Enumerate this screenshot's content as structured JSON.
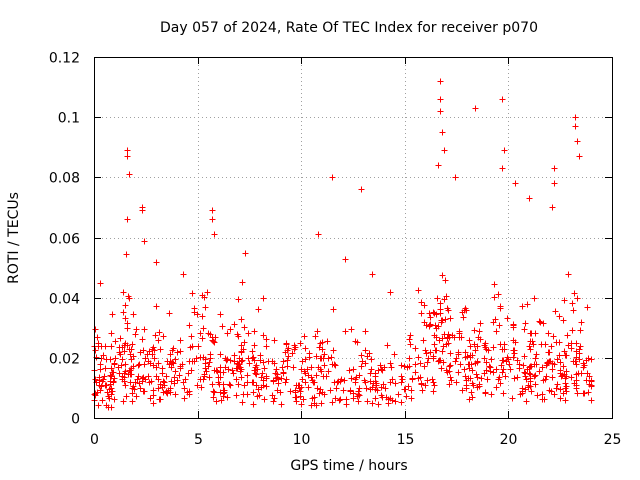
{
  "chart_data": {
    "type": "scatter",
    "title": "Day 057 of 2024, Rate Of TEC Index for receiver p070",
    "xlabel": "GPS time / hours",
    "ylabel": "ROTI / TECUs",
    "xlim": [
      0,
      25
    ],
    "ylim": [
      0,
      0.12
    ],
    "x_ticks": [
      "0",
      "5",
      "10",
      "15",
      "20",
      "25"
    ],
    "y_ticks": [
      "0",
      "0.02",
      "0.04",
      "0.06",
      "0.08",
      "0.1",
      "0.12"
    ],
    "x_tick_values": [
      0,
      5,
      10,
      15,
      20,
      25
    ],
    "y_tick_values": [
      0,
      0.02,
      0.04,
      0.06,
      0.08,
      0.1,
      0.12
    ],
    "grid": true,
    "marker": "plus",
    "series_color": "#ff0000",
    "series": [
      {
        "name": "ROTI",
        "note": "dense band of points between about 0.005 and 0.03 TECU/s across 0-24 h; representative points listed",
        "x": [
          0.1,
          0.3,
          0.5,
          0.8,
          1.0,
          1.2,
          1.5,
          1.6,
          1.7,
          2.0,
          2.2,
          2.4,
          2.6,
          2.9,
          3.1,
          3.4,
          3.7,
          4.0,
          4.4,
          4.6,
          5.0,
          5.3,
          5.6,
          5.8,
          6.0,
          6.3,
          6.7,
          7.0,
          7.2,
          7.4,
          7.7,
          8.0,
          8.3,
          8.6,
          8.9,
          9.2,
          9.6,
          9.9,
          10.2,
          10.6,
          10.9,
          11.2,
          11.5,
          11.9,
          12.3,
          12.6,
          12.9,
          13.3,
          13.6,
          14.0,
          14.4,
          14.8,
          15.2,
          15.5,
          15.9,
          16.2,
          16.5,
          16.7,
          16.9,
          17.1,
          17.4,
          17.7,
          17.9,
          18.2,
          18.5,
          18.8,
          19.1,
          19.4,
          19.7,
          19.9,
          20.2,
          20.5,
          20.8,
          21.0,
          21.3,
          21.6,
          21.9,
          22.2,
          22.5,
          22.8,
          23.0,
          23.2,
          23.4,
          23.6,
          23.9,
          1.6,
          1.6,
          1.7,
          1.6,
          2.3,
          2.3,
          2.4,
          4.3,
          5.7,
          5.7,
          5.8,
          7.3,
          11.5,
          12.9,
          10.8,
          16.7,
          16.7,
          16.7,
          16.8,
          16.9,
          16.6,
          18.4,
          19.7,
          19.8,
          19.7,
          20.3,
          22.2,
          22.2,
          22.1,
          23.2,
          23.2,
          23.3,
          23.4,
          21.0,
          17.4,
          14.3,
          13.4,
          12.1,
          3.0,
          0.3
        ],
        "y": [
          0.012,
          0.018,
          0.014,
          0.01,
          0.02,
          0.015,
          0.025,
          0.03,
          0.016,
          0.012,
          0.022,
          0.018,
          0.014,
          0.02,
          0.026,
          0.012,
          0.017,
          0.022,
          0.013,
          0.019,
          0.024,
          0.014,
          0.028,
          0.016,
          0.012,
          0.02,
          0.015,
          0.018,
          0.023,
          0.012,
          0.016,
          0.021,
          0.014,
          0.019,
          0.013,
          0.022,
          0.017,
          0.011,
          0.015,
          0.012,
          0.02,
          0.014,
          0.018,
          0.013,
          0.016,
          0.012,
          0.021,
          0.015,
          0.011,
          0.017,
          0.013,
          0.014,
          0.02,
          0.018,
          0.026,
          0.022,
          0.03,
          0.035,
          0.028,
          0.025,
          0.019,
          0.027,
          0.022,
          0.018,
          0.024,
          0.02,
          0.017,
          0.029,
          0.023,
          0.019,
          0.026,
          0.018,
          0.015,
          0.024,
          0.02,
          0.017,
          0.022,
          0.018,
          0.016,
          0.021,
          0.025,
          0.019,
          0.023,
          0.017,
          0.014,
          0.089,
          0.087,
          0.081,
          0.066,
          0.07,
          0.069,
          0.059,
          0.048,
          0.069,
          0.066,
          0.061,
          0.055,
          0.08,
          0.076,
          0.061,
          0.112,
          0.106,
          0.102,
          0.095,
          0.089,
          0.084,
          0.103,
          0.106,
          0.089,
          0.083,
          0.078,
          0.083,
          0.078,
          0.07,
          0.1,
          0.097,
          0.092,
          0.087,
          0.073,
          0.08,
          0.042,
          0.048,
          0.053,
          0.052,
          0.045
        ]
      }
    ]
  }
}
